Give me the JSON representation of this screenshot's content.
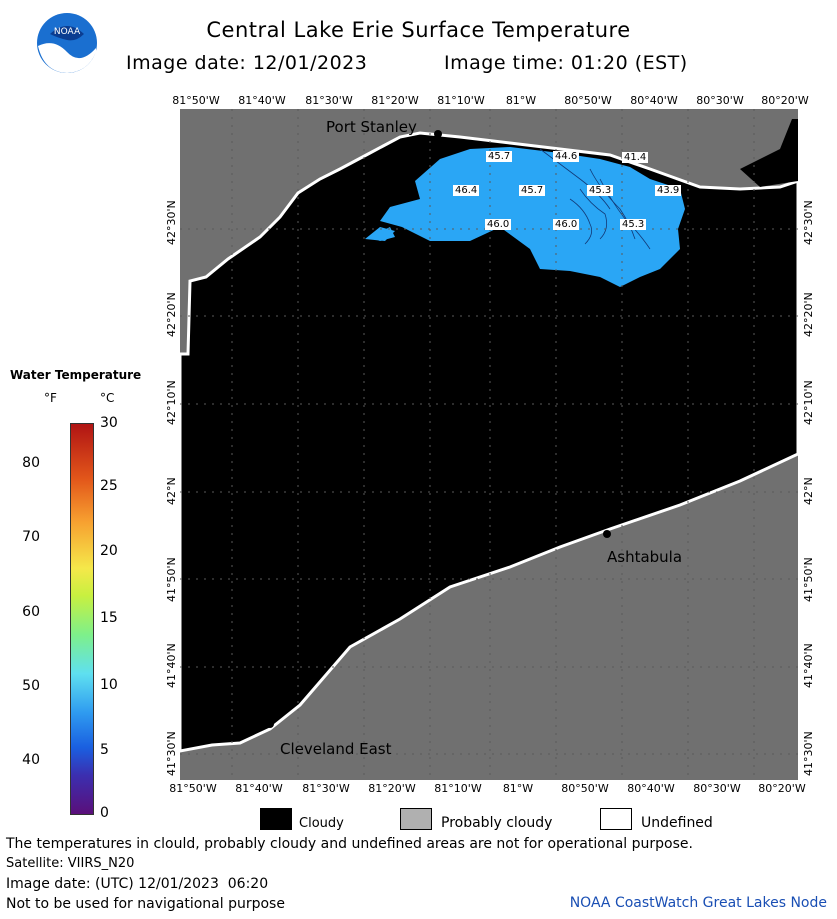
{
  "header": {
    "title": "Central Lake Erie Surface Temperature",
    "image_date": "Image date: 12/01/2023",
    "image_time": "Image time: 01:20 (EST)"
  },
  "logo": {
    "text": "NOAA"
  },
  "map": {
    "lon_labels": [
      "81°50'W",
      "81°40'W",
      "81°30'W",
      "81°20'W",
      "81°10'W",
      "81°W",
      "80°50'W",
      "80°40'W",
      "80°30'W",
      "80°20'W"
    ],
    "lat_labels": [
      "41°30'N",
      "41°40'N",
      "41°50'N",
      "42°N",
      "42°10'N",
      "42°20'N",
      "42°30'N"
    ],
    "places": {
      "port_stanley": "Port Stanley",
      "ashtabula": "Ashtabula",
      "cleveland_east": "Cleveland East"
    },
    "temps": [
      "45.7",
      "44.6",
      "41.4",
      "46.4",
      "45.7",
      "45.3",
      "43.9",
      "46.0",
      "46.0",
      "45.3"
    ],
    "colors": {
      "land": "#707070",
      "cloud": "#000000",
      "water": "#2aa6f5",
      "undefined": "#ffffff"
    }
  },
  "legend": {
    "title": "Water Temperature",
    "unit_f": "°F",
    "unit_c": "°C",
    "ticks_f": [
      "80",
      "70",
      "60",
      "50",
      "40"
    ],
    "ticks_c": [
      "30",
      "25",
      "20",
      "15",
      "10",
      "5",
      "0"
    ]
  },
  "key": {
    "cloudy": "Cloudy",
    "probably_cloudy": "Probably cloudy",
    "undefined": "Undefined"
  },
  "footer": {
    "disclaimer": "The temperatures in clould, probably cloudy and undefined areas are not for operational purpose.",
    "satellite": "Satellite: VIIRS_N20",
    "utc": "Image date: (UTC) 12/01/2023  06:20",
    "nav": "Not to be used for navigational purpose",
    "node": "NOAA CoastWatch Great Lakes Node"
  }
}
